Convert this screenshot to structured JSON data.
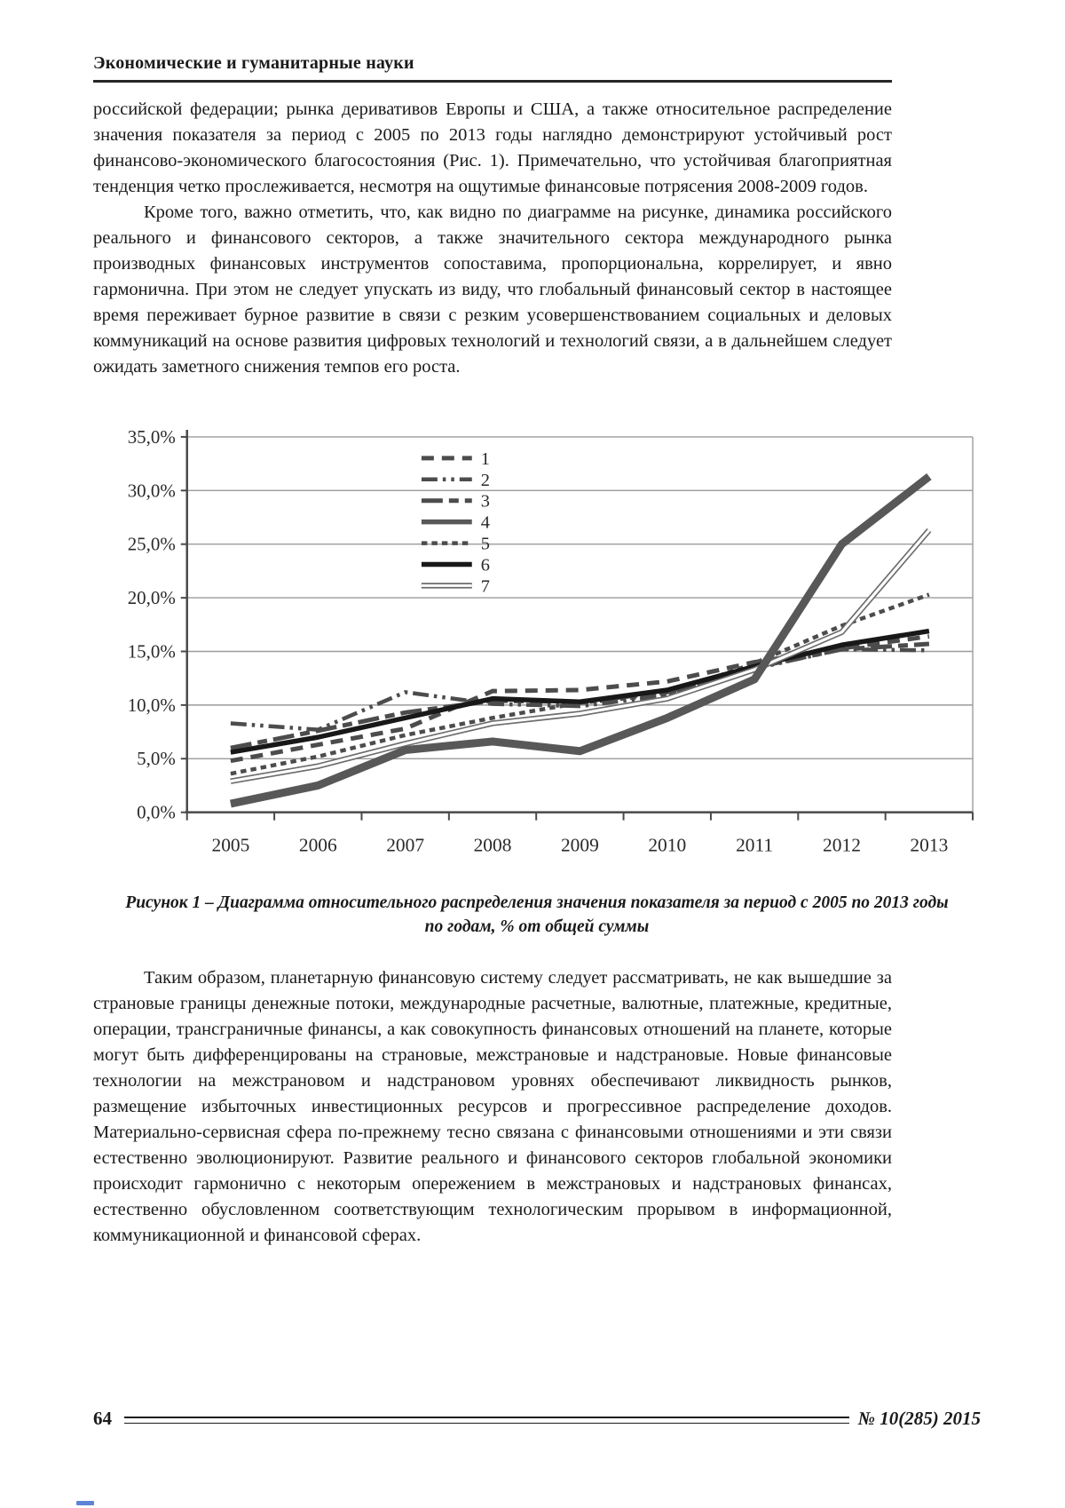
{
  "header": {
    "journal_title": "Экономические и гуманитарные науки"
  },
  "paragraphs": {
    "p1": "российской федерации; рынка деривативов Европы и США, а также относительное распределение значения показателя за период с 2005 по 2013 годы наглядно демонстрируют устойчивый рост финансово-экономического благосостояния (Рис. 1). Примечательно, что устойчивая благоприятная тенденция четко прослеживается, несмотря на ощутимые финансовые потрясения 2008-2009 годов.",
    "p2": "Кроме того, важно отметить, что, как видно по диаграмме на рисунке, динамика российского реального и финансового секторов, а также значительного сектора международного рынка производных финансовых инструментов сопоставима, пропорциональна, коррелирует, и явно гармонична. При этом не следует упускать из виду, что глобальный финансовый сектор в настоящее время переживает бурное развитие в связи с резким усовершенствованием социальных и деловых коммуникаций на основе развития цифровых технологий и технологий связи, а в дальнейшем следует ожидать заметного снижения темпов его роста.",
    "p3": "Таким образом, планетарную финансовую систему следует рассматривать, не как вышедшие за страновые границы денежные потоки, международные расчетные, валютные, платежные, кредитные, операции, трансграничные финансы, а как совокупность финансовых отношений на планете, которые могут быть дифференцированы на страновые, межстрановые и надстрановые. Новые финансовые технологии на межстрановом и надстрановом уровнях обеспечивают ликвидность рынков, размещение избыточных инвестиционных ресурсов и прогрессивное распределение доходов. Материально-сервисная сфера по-прежнему тесно связана с финансовыми отношениями и эти связи естественно эволюционируют. Развитие реального и финансового секторов глобальной экономики происходит гармонично с некоторым опережением в межстрановых и надстрановых финансах, естественно обусловленном соответствующим технологическим прорывом в информационной, коммуникационной и финансовой сферах."
  },
  "figure": {
    "caption_line1": "Рисунок 1 – Диаграмма относительного распределения значения показателя за период с 2005 по 2013 годы",
    "caption_line2": "по годам, % от общей суммы"
  },
  "chart_data": {
    "type": "line",
    "title": "",
    "xlabel": "",
    "ylabel": "",
    "ylim": [
      0,
      35
    ],
    "ytick_step": 5,
    "ytick_labels": [
      "0,0%",
      "5,0%",
      "10,0%",
      "15,0%",
      "20,0%",
      "25,0%",
      "30,0%",
      "35,0%"
    ],
    "grid": "horizontal",
    "legend_position": "upper-center",
    "categories": [
      "2005",
      "2006",
      "2007",
      "2008",
      "2009",
      "2010",
      "2011",
      "2012",
      "2013"
    ],
    "series": [
      {
        "name": "1",
        "style": "dash",
        "color": "#4c4c4c",
        "width": 5,
        "dash": "14 9",
        "values": [
          4.8,
          6.3,
          7.8,
          11.3,
          11.4,
          12.2,
          14.0,
          15.3,
          16.4
        ]
      },
      {
        "name": "2",
        "style": "dash-dot-dot",
        "color": "#4c4c4c",
        "width": 4.5,
        "dash": "18 6 3.5 6 3.5 6",
        "values": [
          8.3,
          7.7,
          11.2,
          10.1,
          9.9,
          10.9,
          13.4,
          15.2,
          15.1
        ]
      },
      {
        "name": "3",
        "style": "long-dash-short-dash",
        "color": "#4c4c4c",
        "width": 5,
        "dash": "24 7 11 7",
        "values": [
          6.0,
          7.6,
          9.3,
          10.4,
          10.3,
          11.2,
          13.5,
          15.2,
          15.7
        ]
      },
      {
        "name": "4",
        "style": "solid-thick",
        "color": "#585858",
        "width": 9,
        "dash": null,
        "values": [
          0.8,
          2.5,
          5.8,
          6.6,
          5.7,
          8.8,
          12.4,
          25.0,
          31.3
        ]
      },
      {
        "name": "5",
        "style": "dotted",
        "color": "#4c4c4c",
        "width": 4.5,
        "dash": "6.5 5",
        "values": [
          3.6,
          5.2,
          7.2,
          8.8,
          10.2,
          11.0,
          13.9,
          17.4,
          20.3
        ]
      },
      {
        "name": "6",
        "style": "solid",
        "color": "#181818",
        "width": 5.5,
        "dash": null,
        "values": [
          5.6,
          7.0,
          8.8,
          10.6,
          10.3,
          11.4,
          13.6,
          15.6,
          16.9
        ]
      },
      {
        "name": "7",
        "style": "double-line",
        "color": "#6c6c6c",
        "width": 6.5,
        "dash": null,
        "values": [
          2.9,
          4.3,
          6.4,
          8.3,
          9.2,
          10.6,
          13.3,
          16.8,
          26.3
        ]
      }
    ]
  },
  "footer": {
    "page_number": "64",
    "issue": "№ 10(285) 2015"
  }
}
